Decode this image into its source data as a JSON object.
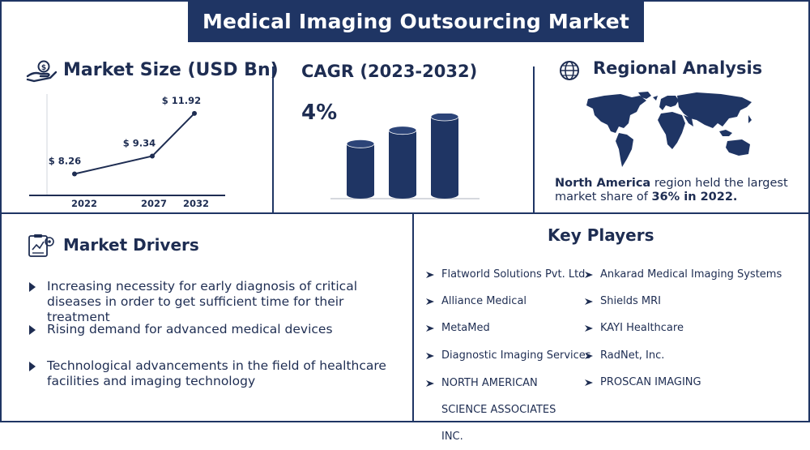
{
  "title": "Medical Imaging Outsourcing Market",
  "market_size": {
    "heading": "Market Size (USD Bn)",
    "icon": "money-hand-icon"
  },
  "cagr": {
    "heading": "CAGR (2023-2032)",
    "value": "4%"
  },
  "regional": {
    "heading": "Regional Analysis",
    "icon": "globe-icon",
    "text_bold1": "North America",
    "text_mid": " region held the largest market share of ",
    "text_bold2": "36% in 2022."
  },
  "drivers": {
    "heading": "Market Drivers",
    "icon": "clipboard-chart-icon",
    "items": [
      "Increasing necessity for early diagnosis of critical diseases in order to get sufficient time for their treatment",
      "Rising demand for advanced medical devices",
      "Technological advancements in the field of healthcare facilities and imaging technology"
    ]
  },
  "players": {
    "heading": "Key Players",
    "left": [
      "Flatworld Solutions Pvt. Ltd.",
      "Alliance Medical",
      "MetaMed",
      "Diagnostic Imaging Services",
      "NORTH AMERICAN SCIENCE ASSOCIATES INC."
    ],
    "right": [
      "Ankarad Medical Imaging Systems",
      "Shields MRI",
      "KAYI Healthcare",
      "RadNet, Inc.",
      "PROSCAN IMAGING"
    ]
  },
  "colors": {
    "navy": "#1f3564",
    "text": "#1e2d52"
  },
  "chart_data": [
    {
      "type": "line",
      "title": "Market Size (USD Bn)",
      "categories": [
        "2022",
        "2027",
        "2032"
      ],
      "values": [
        8.26,
        9.34,
        11.92
      ],
      "labels": [
        "$ 8.26",
        "$ 9.34",
        "$ 11.92"
      ],
      "ylim": [
        7.5,
        12.5
      ]
    },
    {
      "type": "bar",
      "title": "CAGR (2023-2032)",
      "categories": [
        "",
        "",
        ""
      ],
      "values": [
        1,
        1.25,
        1.5
      ]
    }
  ]
}
